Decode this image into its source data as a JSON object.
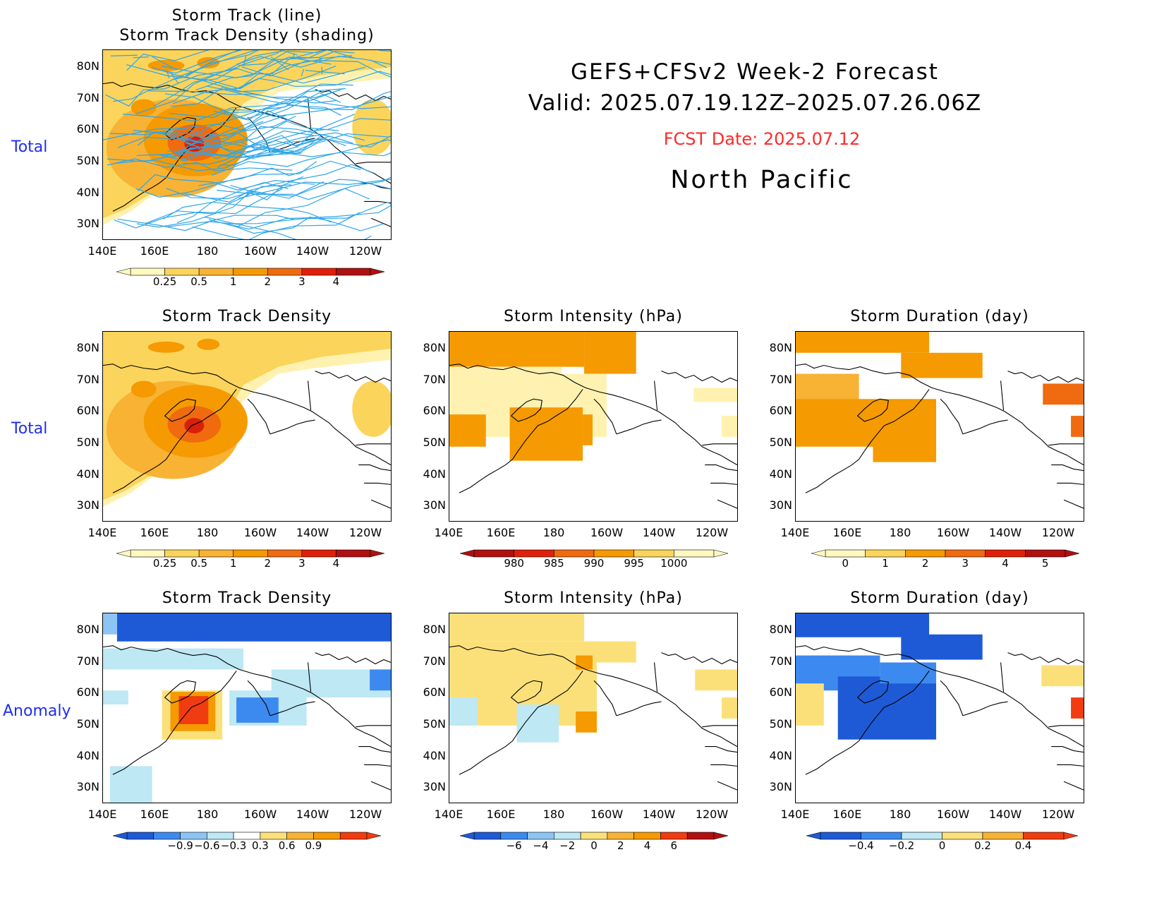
{
  "header": {
    "line1": "GEFS+CFSv2 Week-2 Forecast",
    "line2": "Valid: 2025.07.19.12Z–2025.07.26.06Z",
    "fcst_date": "FCST Date: 2025.07.12",
    "region": "North Pacific",
    "fcst_color": "#ff2a2a"
  },
  "row_labels": {
    "total_top": "Total",
    "total_mid": "Total",
    "anomaly": "Anomaly"
  },
  "axes": {
    "lat_labels": [
      "80N",
      "70N",
      "60N",
      "50N",
      "40N",
      "30N"
    ],
    "lon_labels": [
      "140E",
      "160E",
      "180",
      "160W",
      "140W",
      "120W"
    ]
  },
  "panels": [
    {
      "id": "p0",
      "title_line1": "Storm Track (line)",
      "title_line2": "Storm Track Density (shading)",
      "variable": "track-density-with-tracks"
    },
    {
      "id": "p1",
      "title": "Storm Track Density",
      "variable": "density-total"
    },
    {
      "id": "p2",
      "title": "Storm Intensity (hPa)",
      "variable": "intensity-total"
    },
    {
      "id": "p3",
      "title": "Storm Duration (day)",
      "variable": "duration-total"
    },
    {
      "id": "p4",
      "title": "Storm Track Density",
      "variable": "density-anomaly"
    },
    {
      "id": "p5",
      "title": "Storm Intensity (hPa)",
      "variable": "intensity-anomaly"
    },
    {
      "id": "p6",
      "title": "Storm Duration (day)",
      "variable": "duration-anomaly"
    }
  ],
  "colorbars": {
    "density_total": {
      "labels": [
        "0.25",
        "0.5",
        "1",
        "2",
        "3",
        "4"
      ],
      "colors": [
        "#fff8c0",
        "#fbd45c",
        "#f8b234",
        "#f59a00",
        "#f06a10",
        "#e0200a",
        "#b01010"
      ]
    },
    "intensity_total": {
      "labels": [
        "980",
        "985",
        "990",
        "995",
        "1000"
      ],
      "colors": [
        "#b01010",
        "#e0200a",
        "#f06a10",
        "#f59a00",
        "#fbd45c",
        "#fff8c0"
      ]
    },
    "duration_total": {
      "labels": [
        "0",
        "1",
        "2",
        "3",
        "4",
        "5"
      ],
      "colors": [
        "#fff8c0",
        "#fbd45c",
        "#f59a00",
        "#f06a10",
        "#e0200a",
        "#b01010"
      ]
    },
    "density_anomaly": {
      "labels": [
        "−0.9",
        "−0.6",
        "−0.3",
        "0.3",
        "0.6",
        "0.9"
      ],
      "colors": [
        "#1e5ad6",
        "#3c8af0",
        "#8cc4f4",
        "#bde8f4",
        "#ffffff",
        "#fbe07a",
        "#f8b234",
        "#f59a00",
        "#f03c10"
      ]
    },
    "intensity_anomaly": {
      "labels": [
        "−6",
        "−4",
        "−2",
        "0",
        "2",
        "4",
        "6"
      ],
      "colors": [
        "#1e5ad6",
        "#3c8af0",
        "#8cc4f4",
        "#bde8f4",
        "#fbe07a",
        "#f8b234",
        "#f59a00",
        "#f03c10",
        "#b01010"
      ]
    },
    "duration_anomaly": {
      "labels": [
        "−0.4",
        "−0.2",
        "0",
        "0.2",
        "0.4"
      ],
      "colors": [
        "#1e5ad6",
        "#3c8af0",
        "#bde8f4",
        "#fbe07a",
        "#f8b234",
        "#f03c10"
      ]
    }
  }
}
